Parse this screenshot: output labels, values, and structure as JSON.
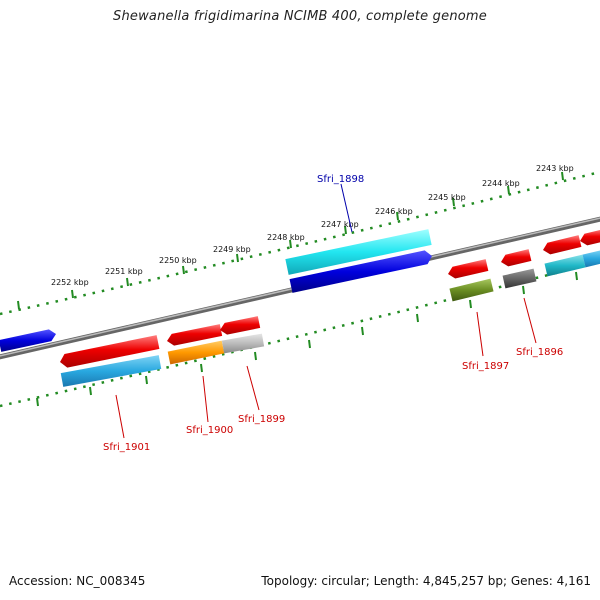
{
  "title": "Shewanella frigidimarina NCIMB 400, complete genome",
  "footer": {
    "accession": "Accession: NC_008345",
    "summary": "Topology: circular; Length: 4,845,257 bp; Genes: 4,161"
  },
  "ruler_labels": [
    "2243 kbp",
    "2244 kbp",
    "2245 kbp",
    "2246 kbp",
    "2247 kbp",
    "2248 kbp",
    "2249 kbp",
    "2250 kbp",
    "2251 kbp",
    "2252 kbp"
  ],
  "gene_labels": [
    {
      "id": "g1898",
      "text": "Sfri_1898",
      "color": "#0000aa"
    },
    {
      "id": "g1897",
      "text": "Sfri_1897",
      "color": "#cc0000"
    },
    {
      "id": "g1896",
      "text": "Sfri_1896",
      "color": "#cc0000"
    },
    {
      "id": "g1899",
      "text": "Sfri_1899",
      "color": "#cc0000"
    },
    {
      "id": "g1900",
      "text": "Sfri_1900",
      "color": "#cc0000"
    },
    {
      "id": "g1901",
      "text": "Sfri_1901",
      "color": "#cc0000"
    }
  ],
  "colors": {
    "gene_red": "#ee0000",
    "cds_blue": "#29a8e0",
    "cds_cyan": "#22e6f0",
    "gene_darkblue": "#0000dd",
    "cds_orange": "#ff9900",
    "cds_gray": "#bbbbbb",
    "cds_olive": "#6b8e23",
    "cds_darkgray": "#666666",
    "backbone": "#888888",
    "ruler_green": "#228b22"
  }
}
